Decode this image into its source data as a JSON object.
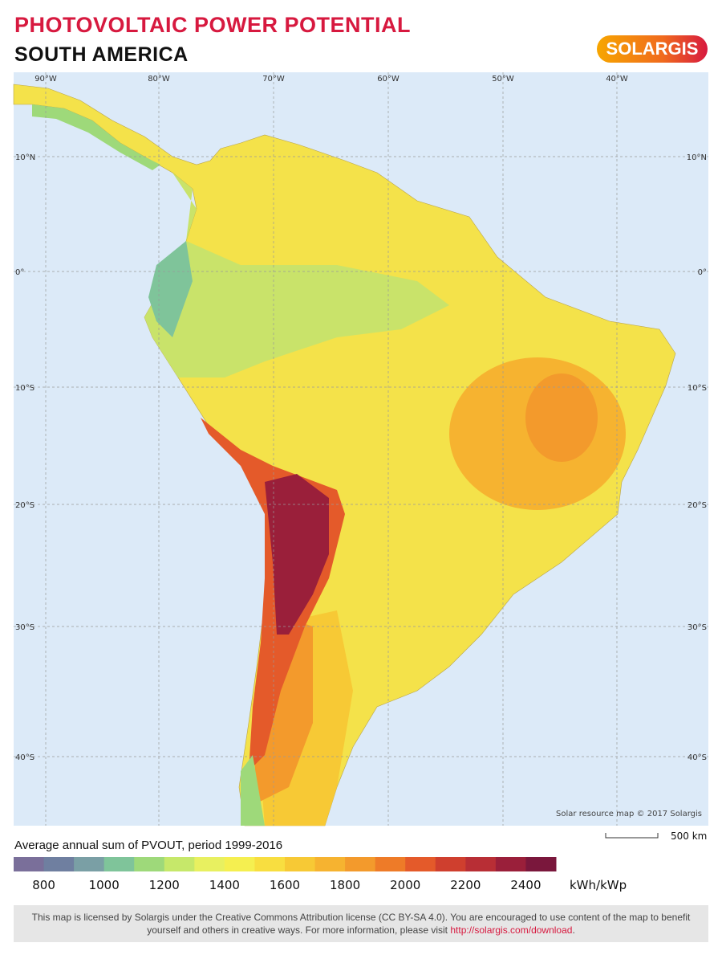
{
  "header": {
    "title": "PHOTOVOLTAIC POWER POTENTIAL",
    "subtitle": "SOUTH AMERICA",
    "logo": "SOLARGIS"
  },
  "map": {
    "longitudes": [
      "90°W",
      "80°W",
      "70°W",
      "60°W",
      "50°W",
      "40°W"
    ],
    "latitudes": [
      "10°N",
      "0°",
      "10°S",
      "20°S",
      "30°S",
      "40°S"
    ],
    "attribution": "Solar resource map © 2017 Solargis",
    "scale": "500 km"
  },
  "legend": {
    "title": "Average annual sum of PVOUT, period 1999-2016",
    "range": [
      700,
      2500
    ],
    "colors": [
      "#7a6f9a",
      "#6f7fa0",
      "#7a9fa5",
      "#7fc49a",
      "#9ed97a",
      "#c6e86a",
      "#e8f060",
      "#f5ef50",
      "#f8de40",
      "#f7c935",
      "#f6b330",
      "#f39a2c",
      "#ee7b28",
      "#e45a2a",
      "#cf3f2e",
      "#b82e35",
      "#9a1f3a",
      "#7a173c"
    ],
    "ticks": [
      800,
      1000,
      1200,
      1400,
      1600,
      1800,
      2000,
      2200,
      2400
    ],
    "unit": "kWh/kWp"
  },
  "footer": {
    "text": "This map is licensed by Solargis under the Creative Commons Attribution license (CC BY-SA 4.0). You are encouraged to use content of the map to benefit yourself and others in creative ways. For more information, please visit ",
    "link": "http://solargis.com/download",
    "end": "."
  }
}
